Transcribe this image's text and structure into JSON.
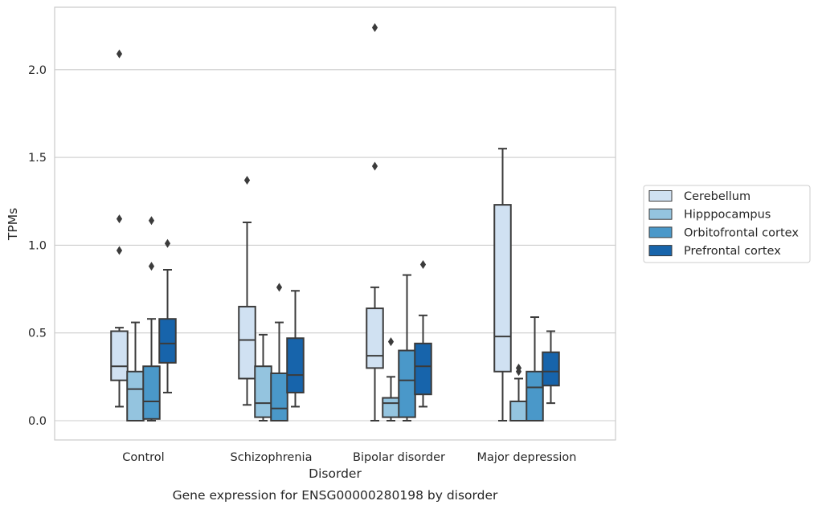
{
  "chart_data": {
    "type": "box",
    "caption": "Gene expression for ENSG00000280198 by disorder",
    "xlabel": "Disorder",
    "ylabel": "TPMs",
    "ylim": [
      -0.11,
      2.36
    ],
    "yticks": [
      0.0,
      0.5,
      1.0,
      1.5,
      2.0
    ],
    "ytick_labels": [
      "0.0",
      "0.5",
      "1.0",
      "1.5",
      "2.0"
    ],
    "grid": "horizontal",
    "legend_position": "right",
    "categories": [
      "Control",
      "Schizophrenia",
      "Bipolar disorder",
      "Major depression"
    ],
    "series": [
      {
        "name": "Cerebellum",
        "color": "#d0e1f2",
        "boxes": [
          {
            "whislo": 0.08,
            "q1": 0.23,
            "med": 0.31,
            "q3": 0.51,
            "whishi": 0.53,
            "fliers": [
              0.97,
              1.15,
              2.09
            ]
          },
          {
            "whislo": 0.09,
            "q1": 0.24,
            "med": 0.46,
            "q3": 0.65,
            "whishi": 1.13,
            "fliers": [
              1.37
            ]
          },
          {
            "whislo": 0.0,
            "q1": 0.3,
            "med": 0.37,
            "q3": 0.64,
            "whishi": 0.76,
            "fliers": [
              1.45,
              2.24
            ]
          },
          {
            "whislo": 0.0,
            "q1": 0.28,
            "med": 0.48,
            "q3": 1.23,
            "whishi": 1.55,
            "fliers": []
          }
        ]
      },
      {
        "name": "Hipppocampus",
        "color": "#94c4df",
        "boxes": [
          {
            "whislo": 0.0,
            "q1": 0.0,
            "med": 0.18,
            "q3": 0.28,
            "whishi": 0.56,
            "fliers": []
          },
          {
            "whislo": 0.0,
            "q1": 0.02,
            "med": 0.1,
            "q3": 0.31,
            "whishi": 0.49,
            "fliers": []
          },
          {
            "whislo": 0.0,
            "q1": 0.02,
            "med": 0.1,
            "q3": 0.13,
            "whishi": 0.25,
            "fliers": [
              0.45
            ]
          },
          {
            "whislo": 0.0,
            "q1": 0.0,
            "med": 0.0,
            "q3": 0.11,
            "whishi": 0.24,
            "fliers": [
              0.28,
              0.3
            ]
          }
        ]
      },
      {
        "name": "Orbitofrontal cortex",
        "color": "#4a98c9",
        "boxes": [
          {
            "whislo": 0.0,
            "q1": 0.01,
            "med": 0.11,
            "q3": 0.31,
            "whishi": 0.58,
            "fliers": [
              0.88,
              1.14
            ]
          },
          {
            "whislo": 0.0,
            "q1": 0.0,
            "med": 0.07,
            "q3": 0.27,
            "whishi": 0.56,
            "fliers": [
              0.76
            ]
          },
          {
            "whislo": 0.0,
            "q1": 0.02,
            "med": 0.23,
            "q3": 0.4,
            "whishi": 0.83,
            "fliers": []
          },
          {
            "whislo": 0.0,
            "q1": 0.0,
            "med": 0.19,
            "q3": 0.28,
            "whishi": 0.59,
            "fliers": []
          }
        ]
      },
      {
        "name": "Prefrontal cortex",
        "color": "#1764ab",
        "boxes": [
          {
            "whislo": 0.16,
            "q1": 0.33,
            "med": 0.44,
            "q3": 0.58,
            "whishi": 0.86,
            "fliers": [
              1.01
            ]
          },
          {
            "whislo": 0.08,
            "q1": 0.16,
            "med": 0.26,
            "q3": 0.47,
            "whishi": 0.74,
            "fliers": []
          },
          {
            "whislo": 0.08,
            "q1": 0.15,
            "med": 0.31,
            "q3": 0.44,
            "whishi": 0.6,
            "fliers": [
              0.89
            ]
          },
          {
            "whislo": 0.1,
            "q1": 0.2,
            "med": 0.28,
            "q3": 0.39,
            "whishi": 0.51,
            "fliers": []
          }
        ]
      }
    ]
  }
}
